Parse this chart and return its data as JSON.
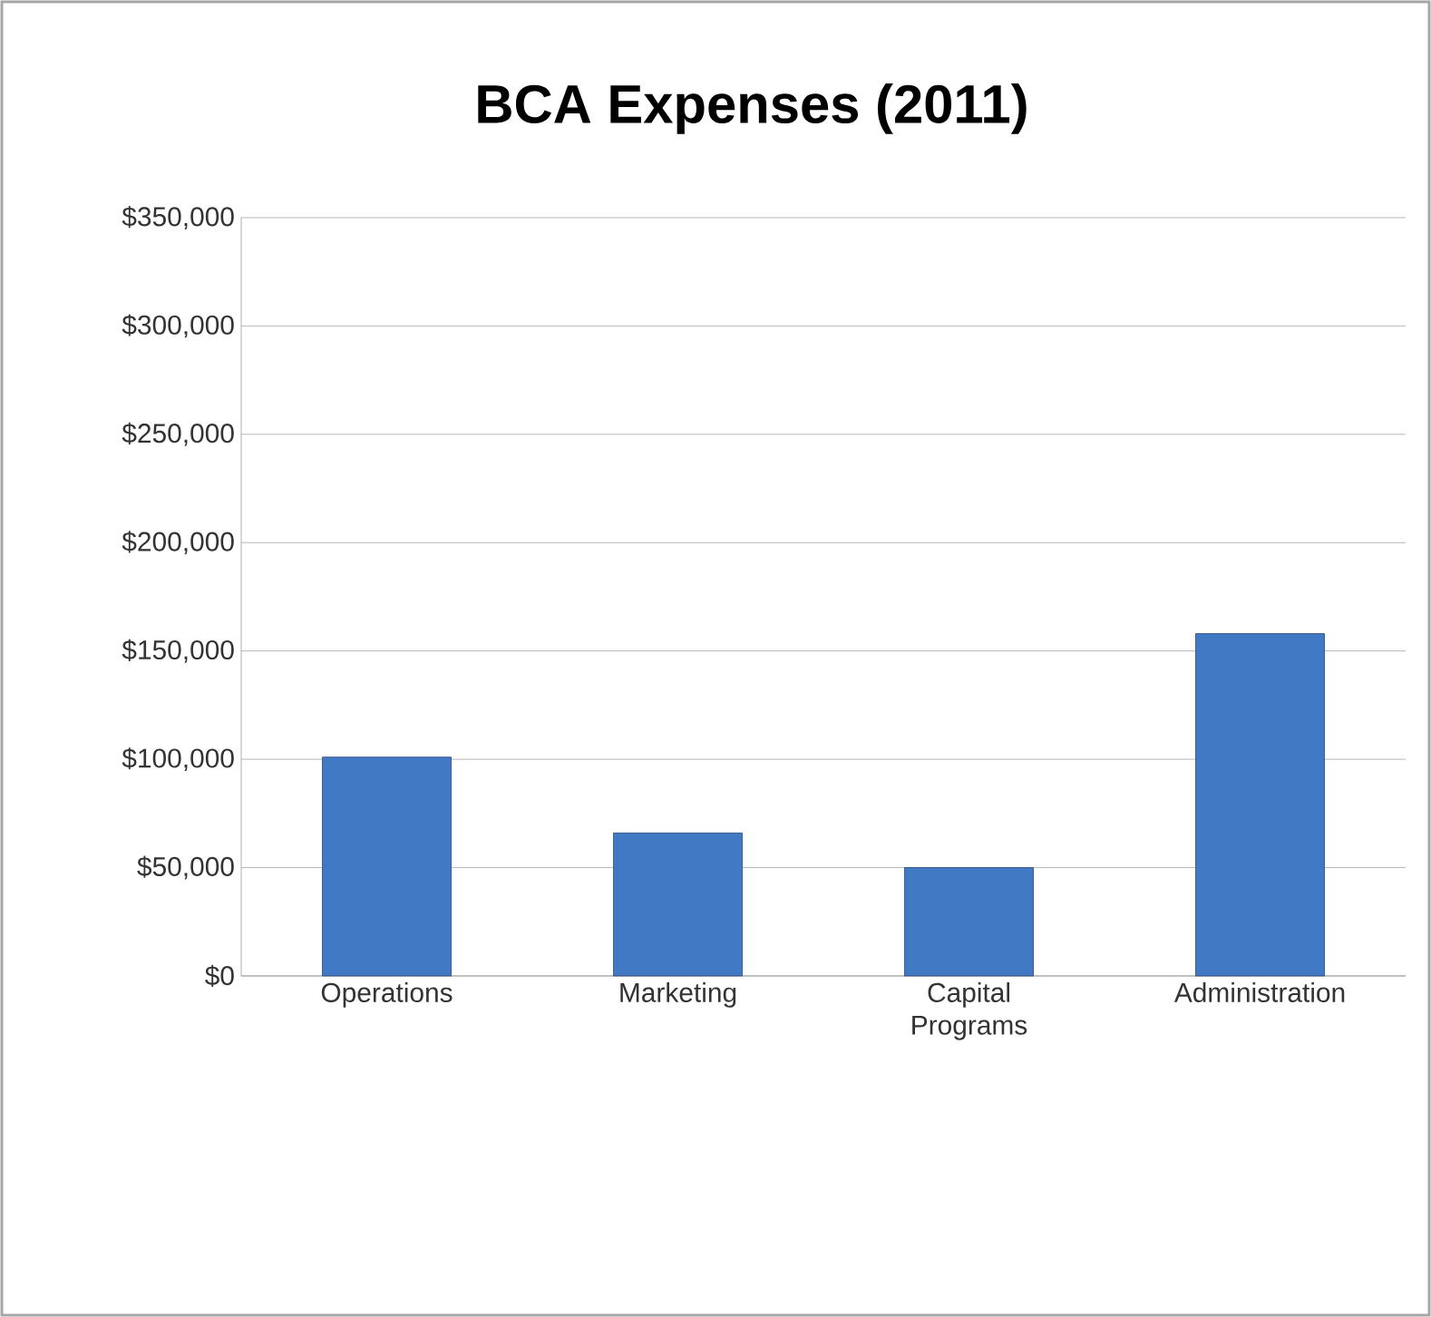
{
  "chart_data": {
    "type": "bar",
    "title": "BCA Expenses (2011)",
    "categories": [
      "Operations",
      "Marketing",
      "Capital Programs",
      "Administration"
    ],
    "values": [
      101000,
      66000,
      50000,
      158000
    ],
    "color": "#4279c4",
    "ylim": [
      0,
      350000
    ],
    "yticks": [
      {
        "value": 0,
        "label": "$0"
      },
      {
        "value": 50000,
        "label": "$50,000"
      },
      {
        "value": 100000,
        "label": "$100,000"
      },
      {
        "value": 150000,
        "label": "$150,000"
      },
      {
        "value": 200000,
        "label": "$200,000"
      },
      {
        "value": 250000,
        "label": "$250,000"
      },
      {
        "value": 300000,
        "label": "$300,000"
      },
      {
        "value": 350000,
        "label": "$350,000"
      }
    ],
    "grid": "y"
  }
}
